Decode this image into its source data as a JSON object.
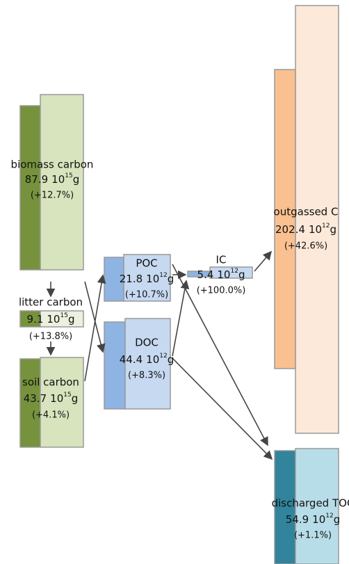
{
  "nodes": [
    {
      "label": "biomass carbon",
      "value": 87.9,
      "unit_base": "10",
      "exponent": "15",
      "unit_suffix": "g",
      "change": "(+12.7%)"
    },
    {
      "label": "litter carbon",
      "value": 9.1,
      "unit_base": "10",
      "exponent": "15",
      "unit_suffix": "g",
      "change": "(+13.8%)"
    },
    {
      "label": "soil carbon",
      "value": 43.7,
      "unit_base": "10",
      "exponent": "15",
      "unit_suffix": "g",
      "change": "(+4.1%)"
    },
    {
      "label": "POC",
      "value": 21.8,
      "unit_base": "10",
      "exponent": "12",
      "unit_suffix": "g",
      "change": "(+10.7%)"
    },
    {
      "label": "DOC",
      "value": 44.4,
      "unit_base": "10",
      "exponent": "12",
      "unit_suffix": "g",
      "change": "(+8.3%)"
    },
    {
      "label": "IC",
      "value": 5.4,
      "unit_base": "10",
      "exponent": "12",
      "unit_suffix": "g",
      "change": "(+100.0%)"
    },
    {
      "label": "outgassed C",
      "value": 202.4,
      "unit_base": "10",
      "exponent": "12",
      "unit_suffix": "g",
      "change": "(+42.6%)"
    },
    {
      "label": "discharged TOC",
      "value": 54.9,
      "unit_base": "10",
      "exponent": "12",
      "unit_suffix": "g",
      "change": "(+1.1%)"
    }
  ]
}
